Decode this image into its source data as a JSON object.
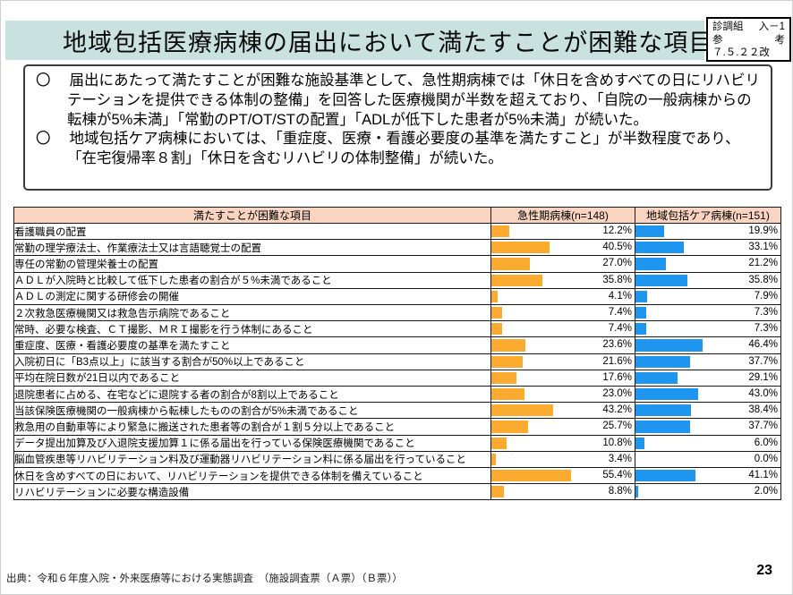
{
  "header": {
    "title": "地域包括医療病棟の届出において満たすことが困難な項目",
    "ref_box": {
      "line1_left": "診調組",
      "line1_right": "入－1",
      "line2_left": "参",
      "line2_right": "考",
      "line3": "７.５.２２改"
    }
  },
  "intro": {
    "marker": "〇",
    "bullets": [
      "届出にあたって満たすことが困難な施設基準として、急性期病棟では「休日を含めすべての日にリハビリテーションを提供できる体制の整備」を回答した医療機関が半数を超えており、「自院の一般病棟からの転棟が5%未満」「常勤のPT/OT/STの配置」「ADLが低下した患者が5%未満」が続いた。",
      "地域包括ケア病棟においては、「重症度、医療・看護必要度の基準を満たすこと」が半数程度であり、「在宅復帰率８割」「休日を含むリハビリの体制整備」が続いた。"
    ]
  },
  "table": {
    "headers": [
      "満たすことが困難な項目",
      "急性期病棟(n=148)",
      "地域包括ケア病棟(n=151)"
    ],
    "rows": [
      {
        "item": "看護職員の配置",
        "acute": "12.2%",
        "care": "19.9%"
      },
      {
        "item": "常勤の理学療法士、作業療法士又は言語聴覚士の配置",
        "acute": "40.5%",
        "care": "33.1%"
      },
      {
        "item": "専任の常勤の管理栄養士の配置",
        "acute": "27.0%",
        "care": "21.2%"
      },
      {
        "item": "ＡＤＬが入院時と比較して低下した患者の割合が５%未満であること",
        "acute": "35.8%",
        "care": "35.8%"
      },
      {
        "item": "ＡＤＬの測定に関する研修会の開催",
        "acute": "4.1%",
        "care": "7.9%"
      },
      {
        "item": "２次救急医療機関又は救急告示病院であること",
        "acute": "7.4%",
        "care": "7.3%"
      },
      {
        "item": "常時、必要な検査、ＣＴ撮影、ＭＲＩ撮影を行う体制にあること",
        "acute": "7.4%",
        "care": "7.3%"
      },
      {
        "item": "重症度、医療・看護必要度の基準を満たすこと",
        "acute": "23.6%",
        "care": "46.4%"
      },
      {
        "item": "入院初日に「B3点以上」に該当する割合が50%以上であること",
        "acute": "21.6%",
        "care": "37.7%"
      },
      {
        "item": "平均在院日数が21日以内であること",
        "acute": "17.6%",
        "care": "29.1%"
      },
      {
        "item": "退院患者に占める、在宅などに退院する者の割合が8割以上であること",
        "acute": "23.0%",
        "care": "43.0%"
      },
      {
        "item": "当該保険医療機関の一般病棟から転棟したものの割合が5%未満であること",
        "acute": "43.2%",
        "care": "38.4%"
      },
      {
        "item": "救急用の自動車等により緊急に搬送された患者等の割合が１割５分以上であること",
        "acute": "25.7%",
        "care": "37.7%"
      },
      {
        "item": "データ提出加算及び入退院支援加算１に係る届出を行っている保険医療機関であること",
        "acute": "10.8%",
        "care": "6.0%"
      },
      {
        "item": "脳血管疾患等リハビリテーション料及び運動器リハビリテーション料に係る届出を行っていること",
        "acute": "3.4%",
        "care": "0.0%"
      },
      {
        "item": "休日を含めすべての日において、リハビリテーションを提供できる体制を備えていること",
        "acute": "55.4%",
        "care": "41.1%"
      },
      {
        "item": "リハビリテーションに必要な構造設備",
        "acute": "8.8%",
        "care": "2.0%"
      }
    ]
  },
  "footer": {
    "source": "出典：令和６年度入院・外来医療等における実態調査　（施設調査票（Ａ票）（Ｂ票））",
    "page_number": "23"
  },
  "colors": {
    "title_bg": "#C9E2DF",
    "table_header_bg": "#F9D5C1",
    "acute_bar": "#FBAB2F",
    "care_bar": "#1E96F0"
  },
  "chart_data": {
    "type": "bar",
    "orientation": "horizontal",
    "title": "地域包括医療病棟の届出において満たすことが困難な項目",
    "unit": "%",
    "xlim": [
      0,
      100
    ],
    "categories": [
      "看護職員の配置",
      "常勤の理学療法士、作業療法士又は言語聴覚士の配置",
      "専任の常勤の管理栄養士の配置",
      "ＡＤＬが入院時と比較して低下した患者の割合が５%未満であること",
      "ＡＤＬの測定に関する研修会の開催",
      "２次救急医療機関又は救急告示病院であること",
      "常時、必要な検査、ＣＴ撮影、ＭＲＩ撮影を行う体制にあること",
      "重症度、医療・看護必要度の基準を満たすこと",
      "入院初日に「B3点以上」に該当する割合が50%以上であること",
      "平均在院日数が21日以内であること",
      "退院患者に占める、在宅などに退院する者の割合が8割以上であること",
      "当該保険医療機関の一般病棟から転棟したものの割合が5%未満であること",
      "救急用の自動車等により緊急に搬送された患者等の割合が１割５分以上であること",
      "データ提出加算及び入退院支援加算１に係る届出を行っている保険医療機関であること",
      "脳血管疾患等リハビリテーション料及び運動器リハビリテーション料に係る届出を行っていること",
      "休日を含めすべての日において、リハビリテーションを提供できる体制を備えていること",
      "リハビリテーションに必要な構造設備"
    ],
    "series": [
      {
        "name": "急性期病棟(n=148)",
        "color": "#FBAB2F",
        "values": [
          12.2,
          40.5,
          27.0,
          35.8,
          4.1,
          7.4,
          7.4,
          23.6,
          21.6,
          17.6,
          23.0,
          43.2,
          25.7,
          10.8,
          3.4,
          55.4,
          8.8
        ]
      },
      {
        "name": "地域包括ケア病棟(n=151)",
        "color": "#1E96F0",
        "values": [
          19.9,
          33.1,
          21.2,
          35.8,
          7.9,
          7.3,
          7.3,
          46.4,
          37.7,
          29.1,
          43.0,
          38.4,
          37.7,
          6.0,
          0.0,
          41.1,
          2.0
        ]
      }
    ]
  }
}
